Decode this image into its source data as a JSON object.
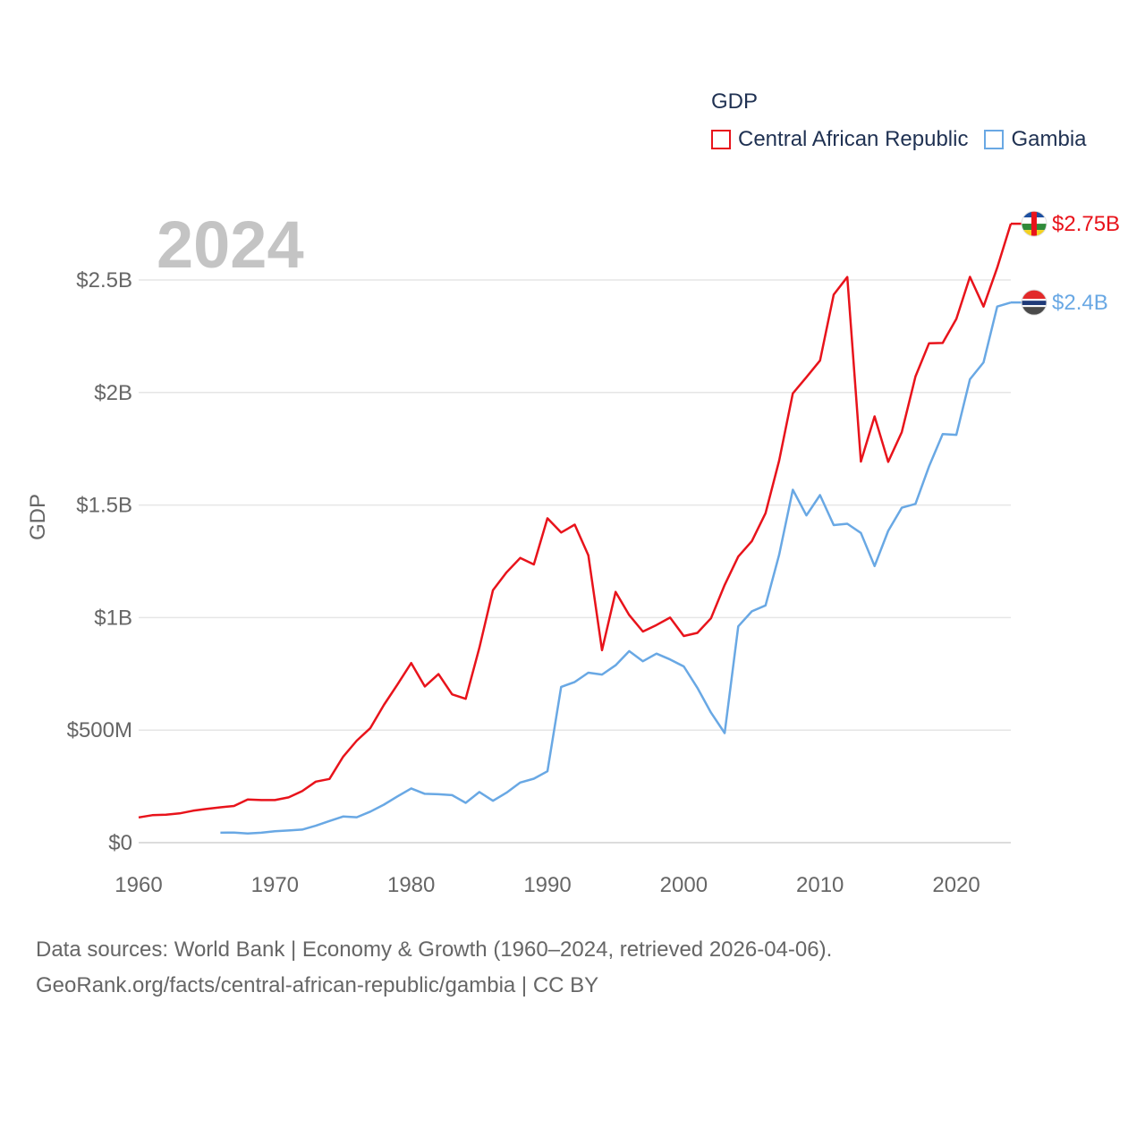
{
  "legend": {
    "title": "GDP",
    "items": [
      {
        "label": "Central African Republic",
        "color": "#e8131b"
      },
      {
        "label": "Gambia",
        "color": "#69a8e4"
      }
    ]
  },
  "footer": {
    "line1": "Data sources: World Bank | Economy & Growth (1960–2024, retrieved 2026-04-06).",
    "line2": "GeoRank.org/facts/central-african-republic/gambia | CC BY"
  },
  "chart_data": {
    "type": "line",
    "title": "",
    "watermark_year": "2024",
    "xlabel": "",
    "ylabel": "GDP",
    "xlim": [
      1960,
      2024
    ],
    "ylim": [
      0,
      2500000000
    ],
    "x_ticks": [
      1960,
      1970,
      1980,
      1990,
      2000,
      2010,
      2020
    ],
    "x_tick_labels": [
      "1960",
      "1970",
      "1980",
      "1990",
      "2000",
      "2010",
      "2020"
    ],
    "y_ticks": [
      0,
      500000000,
      1000000000,
      1500000000,
      2000000000,
      2500000000
    ],
    "y_tick_labels": [
      "$0",
      "$500M",
      "$1B",
      "$1.5B",
      "$2B",
      "$2.5B"
    ],
    "grid": true,
    "legend_position": "top-right",
    "series": [
      {
        "name": "Central African Republic",
        "color": "#e8131b",
        "end_label": "$2.75B",
        "x": [
          1960,
          1961,
          1962,
          1963,
          1964,
          1965,
          1966,
          1967,
          1968,
          1969,
          1970,
          1971,
          1972,
          1973,
          1974,
          1975,
          1976,
          1977,
          1978,
          1979,
          1980,
          1981,
          1982,
          1983,
          1984,
          1985,
          1986,
          1987,
          1988,
          1989,
          1990,
          1991,
          1992,
          1993,
          1994,
          1995,
          1996,
          1997,
          1998,
          1999,
          2000,
          2001,
          2002,
          2003,
          2004,
          2005,
          2006,
          2007,
          2008,
          2009,
          2010,
          2011,
          2012,
          2013,
          2014,
          2015,
          2016,
          2017,
          2018,
          2019,
          2020,
          2021,
          2022,
          2023,
          2024
        ],
        "y": [
          112000000,
          122000000,
          124000000,
          130000000,
          142000000,
          150000000,
          157000000,
          163000000,
          192000000,
          189000000,
          189000000,
          201000000,
          229000000,
          271000000,
          283000000,
          381000000,
          453000000,
          509000000,
          612000000,
          704000000,
          798000000,
          694000000,
          749000000,
          659000000,
          639000000,
          866000000,
          1122000000,
          1201000000,
          1265000000,
          1236000000,
          1441000000,
          1378000000,
          1413000000,
          1277000000,
          855000000,
          1114000000,
          1011000000,
          938000000,
          967000000,
          1000000000,
          918000000,
          932000000,
          997000000,
          1145000000,
          1271000000,
          1340000000,
          1464000000,
          1697000000,
          1996000000,
          2068000000,
          2142000000,
          2435000000,
          2513000000,
          1693000000,
          1894000000,
          1692000000,
          1824000000,
          2071000000,
          2219000000,
          2220000000,
          2327000000,
          2514000000,
          2382000000,
          2555000000,
          2750000000
        ]
      },
      {
        "name": "Gambia",
        "color": "#69a8e4",
        "end_label": "$2.4B",
        "x": [
          1966,
          1967,
          1968,
          1969,
          1970,
          1971,
          1972,
          1973,
          1974,
          1975,
          1976,
          1977,
          1978,
          1979,
          1980,
          1981,
          1982,
          1983,
          1984,
          1985,
          1986,
          1987,
          1988,
          1989,
          1990,
          1991,
          1992,
          1993,
          1994,
          1995,
          1996,
          1997,
          1998,
          1999,
          2000,
          2001,
          2002,
          2003,
          2004,
          2005,
          2006,
          2007,
          2008,
          2009,
          2010,
          2011,
          2012,
          2013,
          2014,
          2015,
          2016,
          2017,
          2018,
          2019,
          2020,
          2021,
          2022,
          2023,
          2024
        ],
        "y": [
          44000000,
          45000000,
          41000000,
          44000000,
          51000000,
          54000000,
          58000000,
          75000000,
          96000000,
          116000000,
          113000000,
          138000000,
          169000000,
          206000000,
          241000000,
          217000000,
          215000000,
          211000000,
          177000000,
          225000000,
          186000000,
          222000000,
          267000000,
          284000000,
          317000000,
          692000000,
          714000000,
          755000000,
          747000000,
          788000000,
          851000000,
          806000000,
          840000000,
          814000000,
          783000000,
          688000000,
          578000000,
          487000000,
          961000000,
          1028000000,
          1054000000,
          1279000000,
          1568000000,
          1454000000,
          1544000000,
          1411000000,
          1417000000,
          1376000000,
          1229000000,
          1385000000,
          1488000000,
          1505000000,
          1672000000,
          1815000000,
          1812000000,
          2059000000,
          2134000000,
          2382000000,
          2400000000
        ]
      }
    ]
  }
}
